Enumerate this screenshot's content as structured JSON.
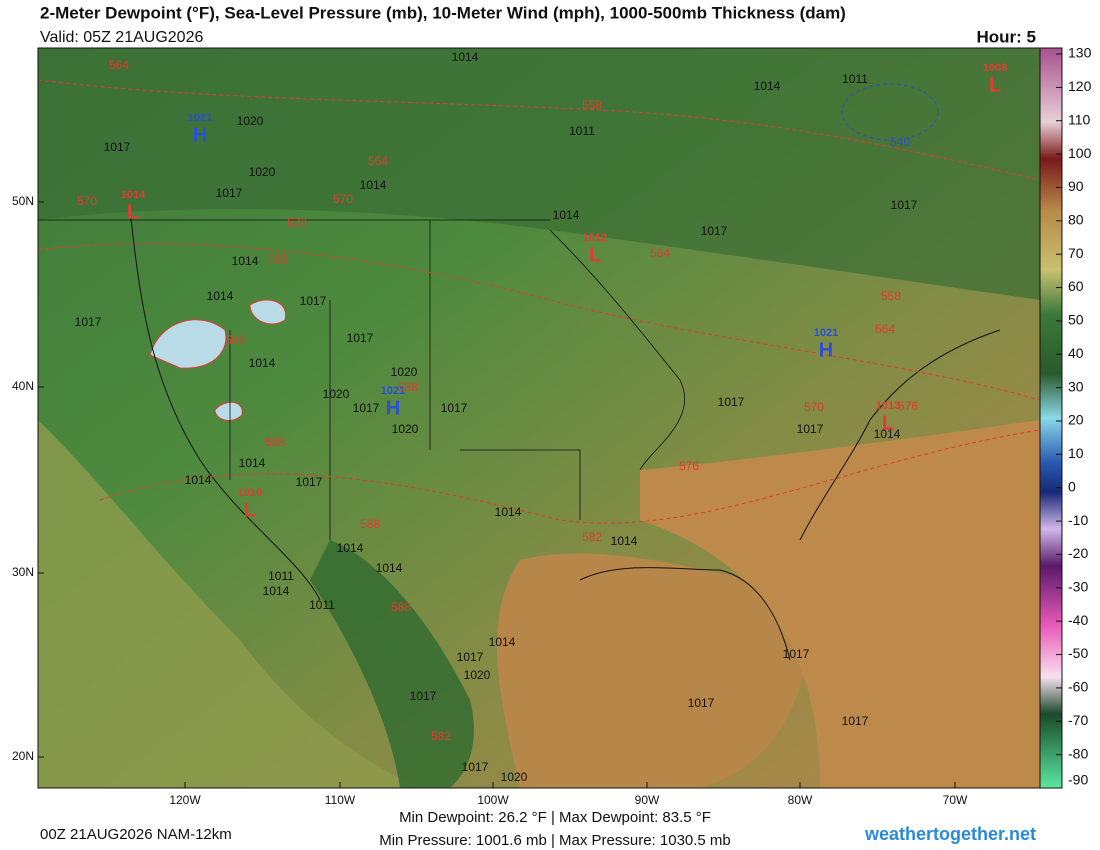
{
  "header": {
    "title": "2-Meter Dewpoint (°F), Sea-Level Pressure (mb), 10-Meter Wind (mph), 1000-500mb Thickness (dam)",
    "valid": "Valid: 05Z 21AUG2026",
    "hour": "Hour: 5"
  },
  "latitude_labels": [
    "50N",
    "40N",
    "30N",
    "20N"
  ],
  "longitude_labels": [
    "120W",
    "110W",
    "100W",
    "90W",
    "80W",
    "70W"
  ],
  "colorbar": {
    "ticks": [
      130,
      120,
      110,
      100,
      90,
      80,
      70,
      60,
      50,
      40,
      30,
      20,
      10,
      0,
      -10,
      -20,
      -30,
      -40,
      -50,
      -60,
      -70,
      -80,
      -90
    ]
  },
  "pressure_centers": [
    {
      "letter": "H",
      "value": 1021
    },
    {
      "letter": "L",
      "value": 1014
    },
    {
      "letter": "L",
      "value": 1012
    },
    {
      "letter": "H",
      "value": 1021
    },
    {
      "letter": "H",
      "value": 1021
    },
    {
      "letter": "L",
      "value": 1013
    },
    {
      "letter": "L",
      "value": 1010
    },
    {
      "letter": "L",
      "value": 1008
    }
  ],
  "isobar_labels": [
    1014,
    1020,
    1017,
    1014,
    1011,
    1011,
    1020,
    1017,
    1017,
    1014,
    1014,
    1017,
    1014,
    1014,
    1017,
    1017,
    1017,
    1014,
    1020,
    1020,
    1017,
    1017,
    1020,
    1017,
    1017,
    1014,
    1014,
    1014,
    1017,
    1014,
    1014,
    1014,
    1014,
    1011,
    1014,
    1011,
    1014,
    1017,
    1020,
    1017,
    1017,
    1017,
    1017,
    1017,
    1020
  ],
  "thickness_labels": [
    564,
    558,
    564,
    570,
    570,
    576,
    582,
    564,
    558,
    564,
    588,
    588,
    570,
    576,
    588,
    576,
    588,
    582,
    588,
    582,
    540
  ],
  "footer": {
    "run": "00Z 21AUG2026 NAM-12km",
    "dewpoint_range": "Min Dewpoint:  26.2 °F | Max Dewpoint:  83.5 °F",
    "pressure_range": "Min Pressure: 1001.6 mb | Max Pressure: 1030.5 mb",
    "site": "weathertogether.net"
  }
}
